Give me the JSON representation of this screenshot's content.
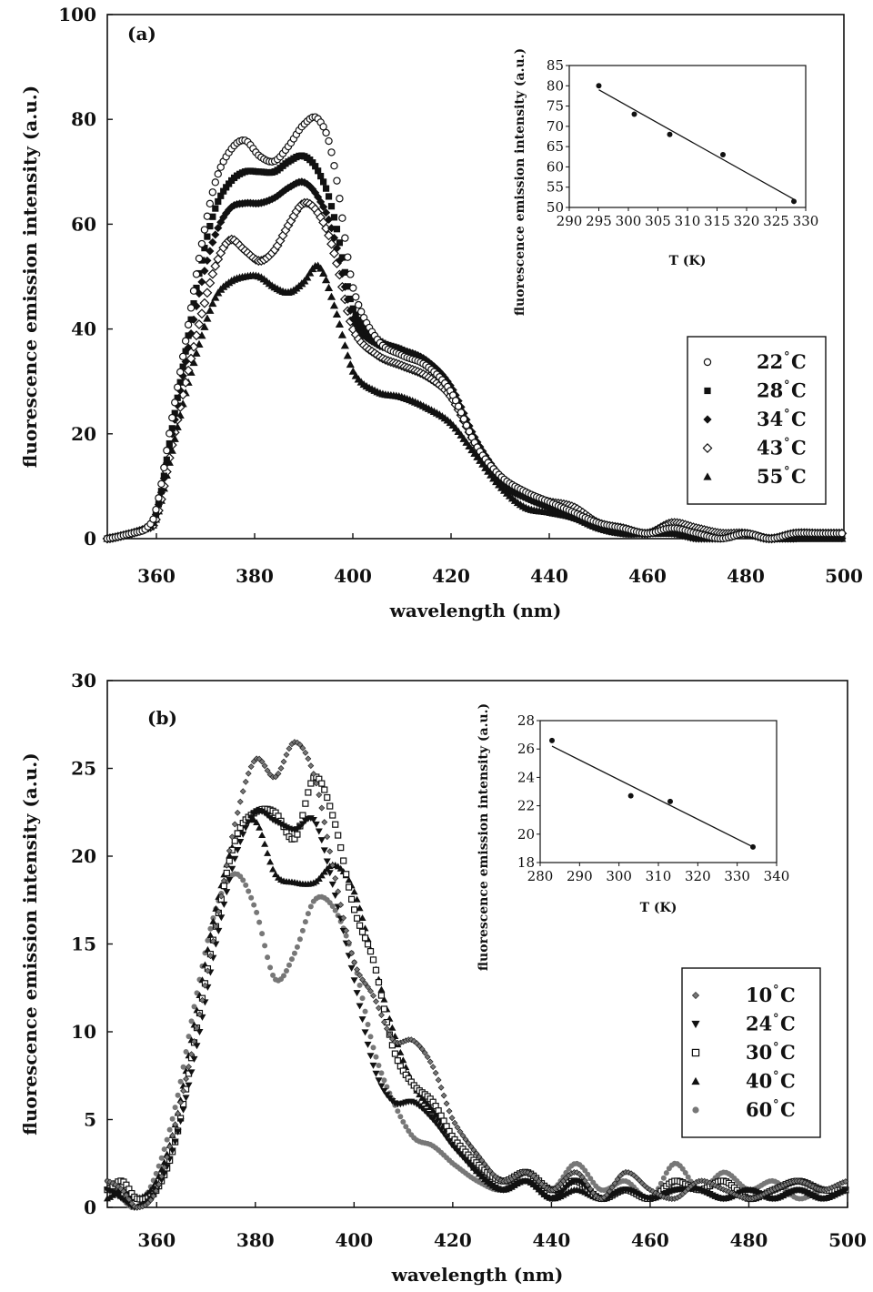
{
  "chart_data": [
    {
      "type": "scatter",
      "panel_label": "(a)",
      "xlabel": "wavelength (nm)",
      "ylabel": "fluorescence emission intensity (a.u.)",
      "xlim": [
        350,
        500
      ],
      "ylim": [
        0,
        100
      ],
      "xticks": [
        360,
        380,
        400,
        420,
        440,
        460,
        480,
        500
      ],
      "yticks": [
        0,
        20,
        40,
        60,
        80,
        100
      ],
      "legend": {
        "position": "right",
        "entries": [
          {
            "value": "22",
            "unit": "°C",
            "marker": "circle-open"
          },
          {
            "value": "28",
            "unit": "°C",
            "marker": "square"
          },
          {
            "value": "34",
            "unit": "°C",
            "marker": "diamond"
          },
          {
            "value": "43",
            "unit": "°C",
            "marker": "diamond-open"
          },
          {
            "value": "55",
            "unit": "°C",
            "marker": "triangle"
          }
        ]
      },
      "series": [
        {
          "name": "22 °C",
          "x": [
            350,
            355,
            358,
            360,
            363,
            366,
            369,
            372,
            375,
            378,
            381,
            384,
            387,
            390,
            393,
            396,
            400,
            405,
            410,
            415,
            420,
            425,
            430,
            435,
            440,
            445,
            450,
            455,
            460,
            465,
            470,
            475,
            480,
            485,
            490,
            495,
            500
          ],
          "y": [
            0,
            1,
            2,
            6,
            22,
            38,
            55,
            68,
            74,
            76,
            73,
            72,
            75,
            79,
            80,
            72,
            48,
            38,
            35,
            33,
            28,
            18,
            12,
            9,
            7,
            5,
            3,
            2,
            1,
            2,
            1,
            0,
            1,
            0,
            1,
            1,
            1
          ]
        },
        {
          "name": "28 °C",
          "x": [
            350,
            355,
            358,
            360,
            363,
            366,
            369,
            372,
            375,
            378,
            381,
            384,
            387,
            390,
            393,
            396,
            400,
            405,
            410,
            415,
            420,
            425,
            430,
            435,
            440,
            445,
            450,
            455,
            460,
            465,
            470,
            475,
            480,
            485,
            490,
            495,
            500
          ],
          "y": [
            0,
            1,
            2,
            5,
            20,
            36,
            52,
            63,
            68,
            70,
            70,
            70,
            72,
            73,
            70,
            62,
            44,
            38,
            36,
            33,
            28,
            18,
            11,
            8,
            6,
            4,
            3,
            1,
            1,
            1,
            1,
            0,
            1,
            0,
            0,
            1,
            0
          ]
        },
        {
          "name": "34 °C",
          "x": [
            350,
            355,
            358,
            360,
            363,
            366,
            369,
            372,
            375,
            378,
            381,
            384,
            387,
            390,
            393,
            396,
            400,
            405,
            410,
            415,
            420,
            425,
            430,
            435,
            440,
            445,
            450,
            455,
            460,
            465,
            470,
            475,
            480,
            485,
            490,
            495,
            500
          ],
          "y": [
            0,
            1,
            2,
            5,
            19,
            34,
            48,
            58,
            63,
            64,
            64,
            65,
            67,
            68,
            65,
            58,
            42,
            37,
            36,
            34,
            29,
            19,
            12,
            8,
            6,
            4,
            2,
            1,
            1,
            1,
            0,
            0,
            1,
            0,
            0,
            1,
            0
          ]
        },
        {
          "name": "43 °C",
          "x": [
            350,
            355,
            358,
            360,
            363,
            366,
            369,
            372,
            375,
            378,
            381,
            384,
            387,
            390,
            393,
            396,
            400,
            405,
            410,
            415,
            420,
            425,
            430,
            435,
            440,
            445,
            450,
            455,
            460,
            465,
            470,
            475,
            480,
            485,
            490,
            495,
            500
          ],
          "y": [
            0,
            1,
            2,
            4,
            17,
            30,
            42,
            52,
            57,
            55,
            53,
            55,
            60,
            64,
            62,
            55,
            40,
            35,
            33,
            31,
            27,
            18,
            11,
            8,
            7,
            6,
            3,
            2,
            1,
            3,
            2,
            1,
            1,
            0,
            1,
            1,
            1
          ]
        },
        {
          "name": "55 °C",
          "x": [
            350,
            355,
            358,
            360,
            363,
            366,
            369,
            372,
            375,
            378,
            381,
            384,
            387,
            390,
            393,
            396,
            400,
            405,
            410,
            415,
            420,
            425,
            430,
            435,
            440,
            445,
            450,
            455,
            460,
            465,
            470,
            475,
            480,
            485,
            490,
            495,
            500
          ],
          "y": [
            0,
            1,
            2,
            4,
            16,
            28,
            38,
            46,
            49,
            50,
            50,
            48,
            47,
            49,
            52,
            45,
            32,
            28,
            27,
            25,
            22,
            16,
            10,
            6,
            5,
            4,
            2,
            1,
            1,
            1,
            1,
            0,
            1,
            0,
            0,
            0,
            0
          ]
        }
      ],
      "inset": {
        "xlabel": "T (K)",
        "ylabel": "fluorescence emission intensity (a.u.)",
        "xlim": [
          290,
          330
        ],
        "ylim": [
          50,
          85
        ],
        "xticks": [
          290,
          295,
          300,
          305,
          310,
          315,
          320,
          325,
          330
        ],
        "yticks": [
          50,
          55,
          60,
          65,
          70,
          75,
          80,
          85
        ],
        "points": {
          "x": [
            295,
            301,
            307,
            316,
            328
          ],
          "y": [
            80,
            73,
            68,
            63,
            51.5
          ]
        },
        "fit_line": {
          "x": [
            295,
            328
          ],
          "y": [
            79,
            52
          ]
        }
      }
    },
    {
      "type": "scatter",
      "panel_label": "(b)",
      "xlabel": "wavelength (nm)",
      "ylabel": "fluorescence emission intensity (a.u.)",
      "xlim": [
        350,
        500
      ],
      "ylim": [
        0,
        30
      ],
      "xticks": [
        360,
        380,
        400,
        420,
        440,
        460,
        480,
        500
      ],
      "yticks": [
        0,
        5,
        10,
        15,
        20,
        25,
        30
      ],
      "legend": {
        "position": "right",
        "entries": [
          {
            "value": "10",
            "unit": "°C",
            "marker": "diamond-small"
          },
          {
            "value": "24",
            "unit": "°C",
            "marker": "triangle-down"
          },
          {
            "value": "30",
            "unit": "°C",
            "marker": "square-open"
          },
          {
            "value": "40",
            "unit": "°C",
            "marker": "triangle"
          },
          {
            "value": "60",
            "unit": "°C",
            "marker": "dot-grey"
          }
        ]
      },
      "series": [
        {
          "name": "10 °C",
          "x": [
            350,
            353,
            356,
            360,
            364,
            368,
            372,
            376,
            380,
            384,
            388,
            392,
            396,
            400,
            404,
            408,
            412,
            416,
            420,
            425,
            430,
            435,
            440,
            445,
            450,
            455,
            460,
            465,
            470,
            475,
            480,
            485,
            490,
            495,
            500
          ],
          "y": [
            1.5,
            1,
            0,
            1,
            5,
            10,
            16,
            22,
            25.5,
            24.5,
            26.5,
            24.5,
            19,
            14,
            12,
            9.5,
            9.5,
            8,
            5,
            3,
            1.5,
            2,
            1,
            2,
            0.5,
            2,
            1,
            0.5,
            1.5,
            1,
            0.5,
            1,
            1.5,
            1,
            1.5
          ]
        },
        {
          "name": "24 °C",
          "x": [
            350,
            353,
            356,
            360,
            364,
            368,
            372,
            376,
            380,
            384,
            388,
            392,
            396,
            400,
            404,
            408,
            412,
            416,
            420,
            425,
            430,
            435,
            440,
            445,
            450,
            455,
            460,
            465,
            470,
            475,
            480,
            485,
            490,
            495,
            500
          ],
          "y": [
            1,
            0.5,
            0,
            1,
            4,
            9,
            15,
            20,
            22.5,
            22,
            21.5,
            22,
            18,
            13,
            8,
            6,
            6,
            5,
            3.5,
            2,
            1,
            1.5,
            0.5,
            1.5,
            0.5,
            1,
            0.5,
            1,
            1,
            0.5,
            1,
            0.5,
            1,
            0.5,
            1
          ]
        },
        {
          "name": "30 °C",
          "x": [
            350,
            353,
            356,
            360,
            364,
            368,
            372,
            376,
            380,
            384,
            388,
            392,
            396,
            400,
            404,
            408,
            412,
            416,
            420,
            425,
            430,
            435,
            440,
            445,
            450,
            455,
            460,
            465,
            470,
            475,
            480,
            485,
            490,
            495,
            500
          ],
          "y": [
            1,
            1.5,
            0.5,
            1,
            4,
            10,
            16,
            21,
            22.5,
            22.5,
            21,
            24.5,
            22,
            17,
            14,
            9,
            7,
            6,
            4,
            2.5,
            1.5,
            2,
            1,
            1.5,
            0.5,
            1,
            0.5,
            1.5,
            1,
            1.5,
            0.5,
            1,
            1.5,
            1,
            1
          ]
        },
        {
          "name": "40 °C",
          "x": [
            350,
            353,
            356,
            360,
            364,
            368,
            372,
            376,
            380,
            384,
            388,
            392,
            396,
            400,
            404,
            408,
            412,
            416,
            420,
            425,
            430,
            435,
            440,
            445,
            450,
            455,
            460,
            465,
            470,
            475,
            480,
            485,
            490,
            495,
            500
          ],
          "y": [
            0.5,
            1,
            0.5,
            1.5,
            5,
            11,
            17,
            21,
            22,
            19,
            18.5,
            18.5,
            19.5,
            18,
            14,
            10,
            7,
            5.5,
            4,
            2,
            1,
            1.5,
            0.5,
            1,
            0.5,
            1,
            0.5,
            1,
            1,
            0.5,
            1,
            0.5,
            1,
            0.5,
            1
          ]
        },
        {
          "name": "60 °C",
          "x": [
            350,
            353,
            356,
            360,
            364,
            368,
            372,
            376,
            380,
            384,
            388,
            392,
            396,
            400,
            404,
            408,
            412,
            416,
            420,
            425,
            430,
            435,
            440,
            445,
            450,
            455,
            460,
            465,
            470,
            475,
            480,
            485,
            490,
            495,
            500
          ],
          "y": [
            1.5,
            0.5,
            0,
            2,
            6,
            12,
            17,
            19,
            17,
            13,
            14.5,
            17.5,
            17,
            14,
            9,
            6,
            4,
            3.5,
            2.5,
            1.5,
            1,
            2,
            1,
            2.5,
            1,
            1.5,
            0.5,
            2.5,
            1,
            2,
            1,
            1.5,
            0.5,
            1,
            1
          ]
        }
      ],
      "inset": {
        "xlabel": "T (K)",
        "ylabel": "fluorescence emission intensity (a.u.)",
        "xlim": [
          280,
          340
        ],
        "ylim": [
          18,
          28
        ],
        "xticks": [
          280,
          290,
          300,
          310,
          320,
          330,
          340
        ],
        "yticks": [
          18,
          20,
          22,
          24,
          26,
          28
        ],
        "points": {
          "x": [
            283,
            303,
            313,
            334
          ],
          "y": [
            26.6,
            22.7,
            22.3,
            19.1
          ]
        },
        "fit_line": {
          "x": [
            283,
            334
          ],
          "y": [
            26.2,
            19.1
          ]
        }
      }
    }
  ],
  "colors": {
    "axis": "#111111",
    "marker_dark": "#111111",
    "marker_grey": "#777777"
  }
}
